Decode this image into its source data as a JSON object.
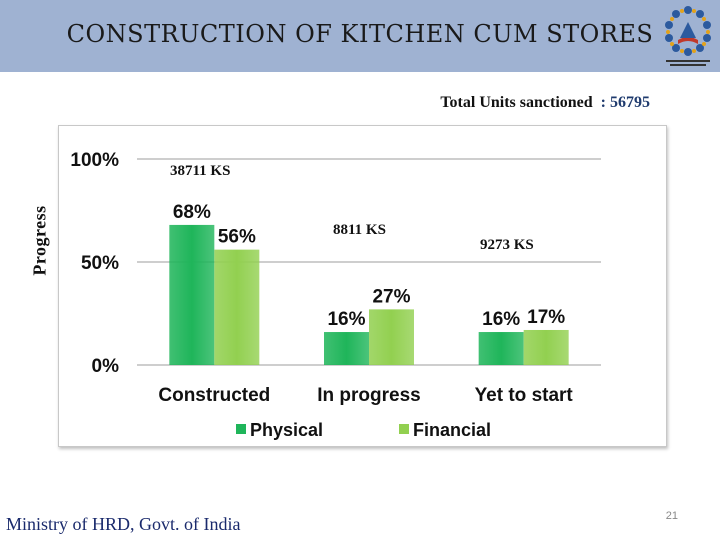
{
  "slide": {
    "title": "CONSTRUCTION OF KITCHEN CUM STORES",
    "total_label": "Total Units sanctioned",
    "total_value": ": 56795",
    "ks_labels": [
      "38711 KS",
      "8811 KS",
      "9273 KS"
    ],
    "footer": "Ministry of HRD, Govt. of India",
    "page_number": "21"
  },
  "chart_data": {
    "type": "bar",
    "ylabel": "Progress",
    "categories": [
      "Constructed",
      "In progress",
      "Yet to start"
    ],
    "series": [
      {
        "name": "Physical",
        "values": [
          68,
          16,
          16
        ],
        "labels": [
          "68%",
          "16%",
          "16%"
        ],
        "color": "#1fb55a"
      },
      {
        "name": "Financial",
        "values": [
          56,
          27,
          17
        ],
        "labels": [
          "56%",
          "27%",
          "17%"
        ],
        "color": "#92d050"
      }
    ],
    "ylim": [
      0,
      100
    ],
    "yticks": [
      0,
      50,
      100
    ],
    "ytick_labels": [
      "0%",
      "50%",
      "100%"
    ],
    "grid": true,
    "legend": "bottom"
  }
}
